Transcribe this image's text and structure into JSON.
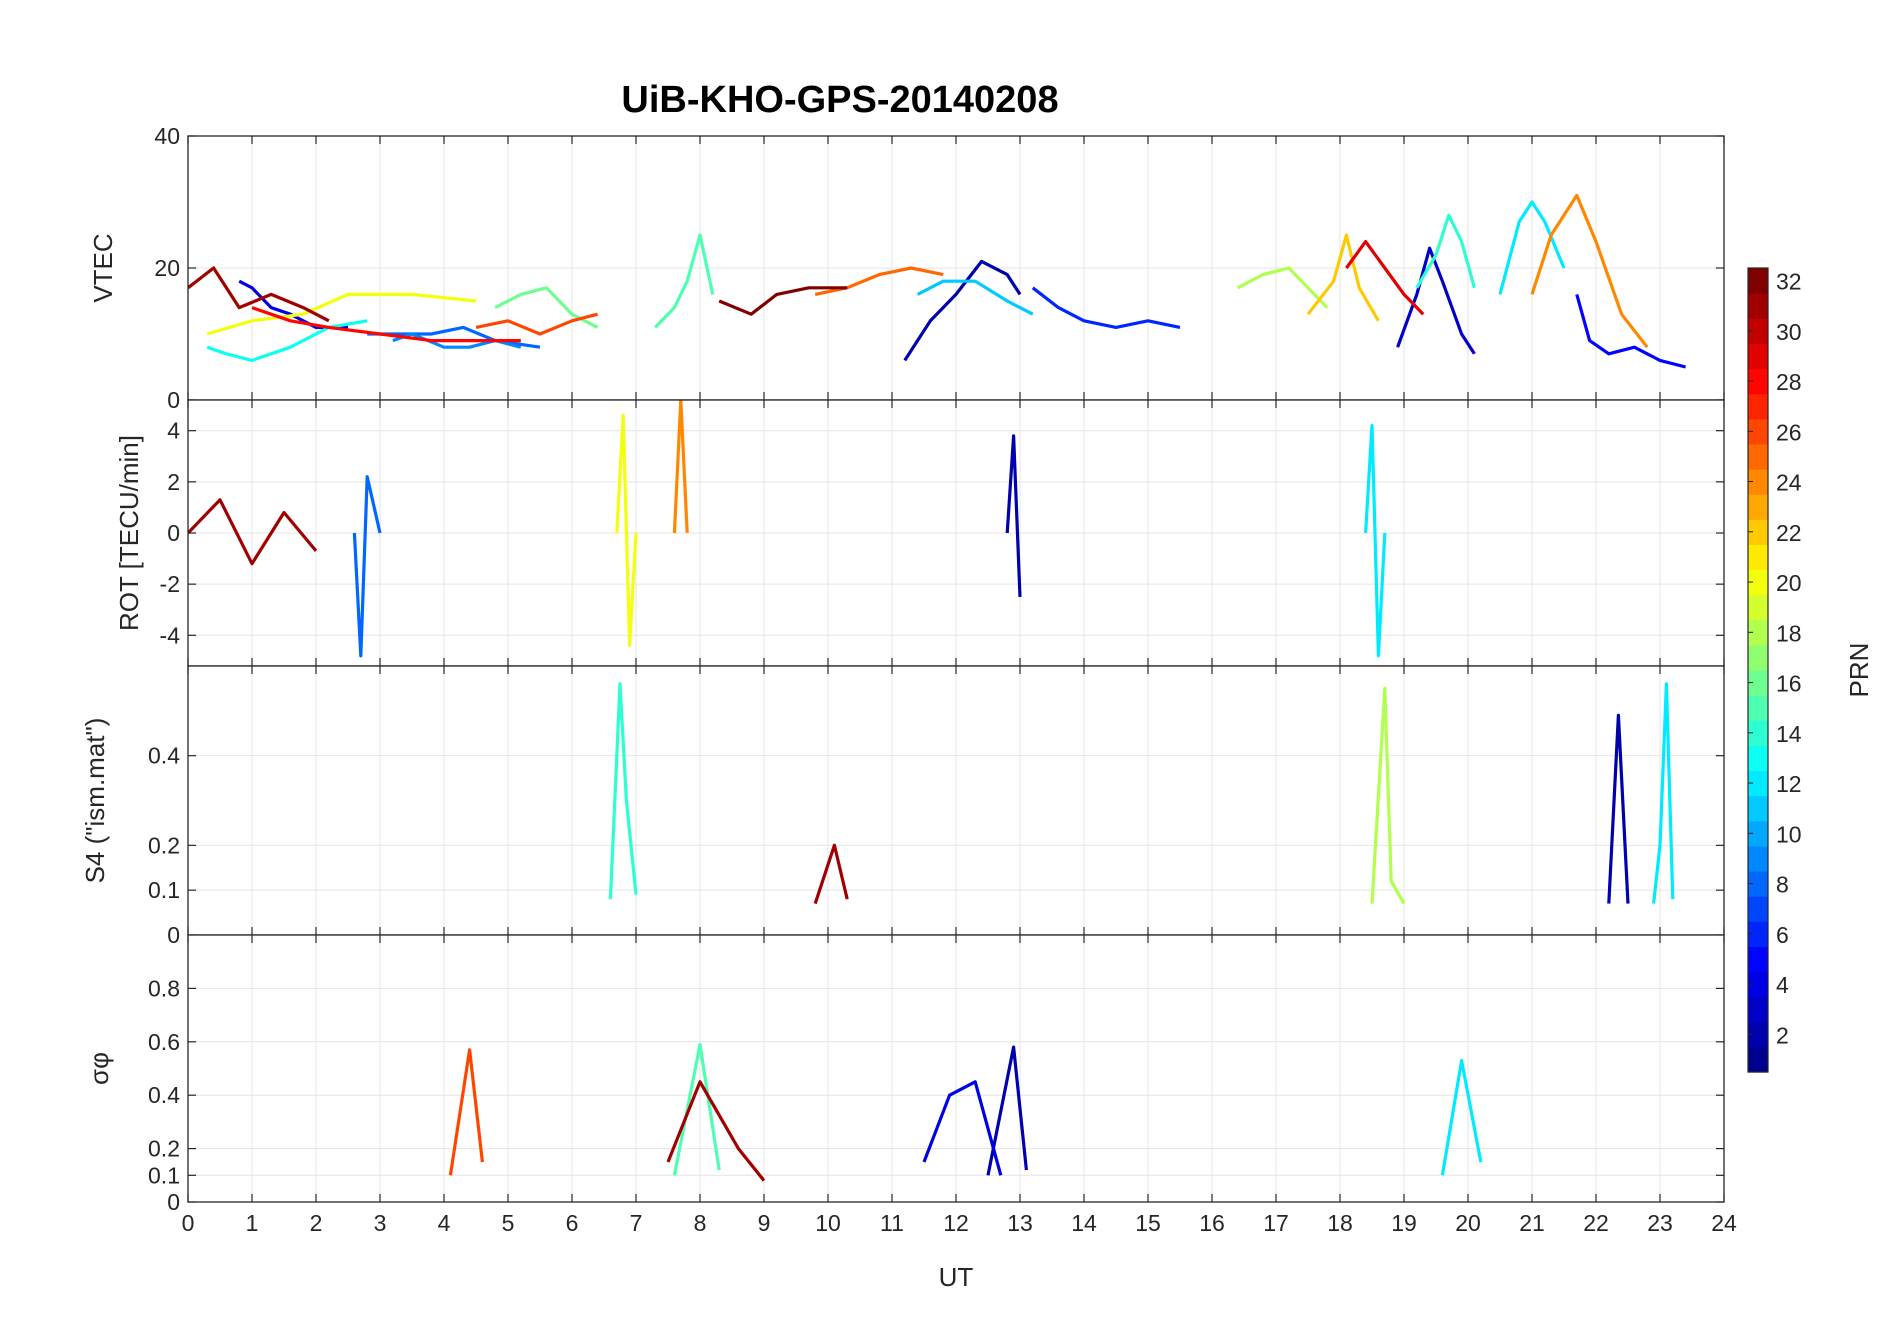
{
  "chart_data": {
    "type": "line",
    "title": "UiB-KHO-GPS-20140208",
    "x": {
      "label": "UT",
      "range": [
        0,
        24
      ],
      "ticks": [
        0,
        1,
        2,
        3,
        4,
        5,
        6,
        7,
        8,
        9,
        10,
        11,
        12,
        13,
        14,
        15,
        16,
        17,
        18,
        19,
        20,
        21,
        22,
        23,
        24
      ]
    },
    "grid": true,
    "colorbar": {
      "label": "PRN",
      "range": [
        1,
        32
      ],
      "ticks": [
        2,
        4,
        6,
        8,
        10,
        12,
        14,
        16,
        18,
        20,
        22,
        24,
        26,
        28,
        30,
        32
      ],
      "colormap": [
        "#00008f",
        "#0000ff",
        "#0080ff",
        "#00ffff",
        "#80ff80",
        "#ffff00",
        "#ff8000",
        "#ff0000",
        "#800000"
      ]
    },
    "panels": [
      {
        "id": "vtec",
        "ylabel": "VTEC",
        "ylim": [
          0,
          40
        ],
        "yticks": [
          0,
          20,
          40
        ],
        "ytick_labels": [
          "0",
          "20",
          "40"
        ],
        "series": [
          {
            "prn": 2,
            "points": [
              [
                11.2,
                6
              ],
              [
                11.6,
                12
              ],
              [
                12,
                16
              ],
              [
                12.4,
                21
              ],
              [
                12.8,
                19
              ],
              [
                13,
                16
              ]
            ]
          },
          {
            "prn": 3,
            "points": [
              [
                18.9,
                8
              ],
              [
                19.2,
                16
              ],
              [
                19.4,
                23
              ],
              [
                19.6,
                18
              ],
              [
                19.9,
                10
              ],
              [
                20.1,
                7
              ]
            ]
          },
          {
            "prn": 4,
            "points": [
              [
                0.8,
                18
              ],
              [
                1,
                17
              ],
              [
                1.3,
                14
              ],
              [
                1.6,
                13
              ],
              [
                2,
                11
              ],
              [
                2.5,
                11
              ]
            ]
          },
          {
            "prn": 5,
            "points": [
              [
                21.7,
                16
              ],
              [
                21.9,
                9
              ],
              [
                22.2,
                7
              ],
              [
                22.6,
                8
              ],
              [
                23,
                6
              ],
              [
                23.4,
                5
              ]
            ]
          },
          {
            "prn": 6,
            "points": [
              [
                13.2,
                17
              ],
              [
                13.6,
                14
              ],
              [
                14,
                12
              ],
              [
                14.5,
                11
              ],
              [
                15,
                12
              ],
              [
                15.5,
                11
              ]
            ]
          },
          {
            "prn": 8,
            "points": [
              [
                2.8,
                10
              ],
              [
                3.2,
                10
              ],
              [
                3.8,
                10
              ],
              [
                4.3,
                11
              ],
              [
                4.8,
                9
              ],
              [
                5.5,
                8
              ]
            ]
          },
          {
            "prn": 9,
            "points": [
              [
                3.2,
                9
              ],
              [
                3.5,
                10
              ],
              [
                4,
                8
              ],
              [
                4.4,
                8
              ],
              [
                4.8,
                9
              ],
              [
                5.2,
                8
              ]
            ]
          },
          {
            "prn": 11,
            "points": [
              [
                11.4,
                16
              ],
              [
                11.8,
                18
              ],
              [
                12.3,
                18
              ],
              [
                12.8,
                15
              ],
              [
                13.2,
                13
              ]
            ]
          },
          {
            "prn": 12,
            "points": [
              [
                20.5,
                16
              ],
              [
                20.8,
                27
              ],
              [
                21,
                30
              ],
              [
                21.2,
                27
              ],
              [
                21.5,
                20
              ]
            ]
          },
          {
            "prn": 13,
            "points": [
              [
                0.3,
                8
              ],
              [
                0.6,
                7
              ],
              [
                1,
                6
              ],
              [
                1.6,
                8
              ],
              [
                2.2,
                11
              ],
              [
                2.8,
                12
              ]
            ]
          },
          {
            "prn": 14,
            "points": [
              [
                19.2,
                17
              ],
              [
                19.5,
                22
              ],
              [
                19.7,
                28
              ],
              [
                19.9,
                24
              ],
              [
                20.1,
                17
              ]
            ]
          },
          {
            "prn": 15,
            "points": [
              [
                7.3,
                11
              ],
              [
                7.6,
                14
              ],
              [
                7.8,
                18
              ],
              [
                8,
                25
              ],
              [
                8.2,
                16
              ]
            ]
          },
          {
            "prn": 16,
            "points": [
              [
                4.8,
                14
              ],
              [
                5.2,
                16
              ],
              [
                5.6,
                17
              ],
              [
                6,
                13
              ],
              [
                6.4,
                11
              ]
            ]
          },
          {
            "prn": 18,
            "points": [
              [
                16.4,
                17
              ],
              [
                16.8,
                19
              ],
              [
                17.2,
                20
              ],
              [
                17.6,
                16
              ],
              [
                17.8,
                14
              ]
            ]
          },
          {
            "prn": 20,
            "points": [
              [
                0.3,
                10
              ],
              [
                1,
                12
              ],
              [
                1.8,
                13
              ],
              [
                2.5,
                16
              ],
              [
                3.5,
                16
              ],
              [
                4.5,
                15
              ]
            ]
          },
          {
            "prn": 22,
            "points": [
              [
                17.5,
                13
              ],
              [
                17.9,
                18
              ],
              [
                18.1,
                25
              ],
              [
                18.3,
                17
              ],
              [
                18.6,
                12
              ]
            ]
          },
          {
            "prn": 24,
            "points": [
              [
                21,
                16
              ],
              [
                21.3,
                25
              ],
              [
                21.7,
                31
              ],
              [
                22,
                24
              ],
              [
                22.4,
                13
              ],
              [
                22.8,
                8
              ]
            ]
          },
          {
            "prn": 25,
            "points": [
              [
                9.8,
                16
              ],
              [
                10.3,
                17
              ],
              [
                10.8,
                19
              ],
              [
                11.3,
                20
              ],
              [
                11.8,
                19
              ]
            ]
          },
          {
            "prn": 26,
            "points": [
              [
                4.5,
                11
              ],
              [
                5,
                12
              ],
              [
                5.5,
                10
              ],
              [
                6,
                12
              ],
              [
                6.4,
                13
              ]
            ]
          },
          {
            "prn": 28,
            "points": [
              [
                1,
                14
              ],
              [
                1.6,
                12
              ],
              [
                2.2,
                11
              ],
              [
                3,
                10
              ],
              [
                3.8,
                9
              ],
              [
                4.5,
                9
              ],
              [
                5.2,
                9
              ]
            ]
          },
          {
            "prn": 29,
            "points": [
              [
                18.1,
                20
              ],
              [
                18.4,
                24
              ],
              [
                18.7,
                20
              ],
              [
                19,
                16
              ],
              [
                19.3,
                13
              ]
            ]
          },
          {
            "prn": 31,
            "points": [
              [
                0,
                17
              ],
              [
                0.4,
                20
              ],
              [
                0.8,
                14
              ],
              [
                1.3,
                16
              ],
              [
                1.8,
                14
              ],
              [
                2.2,
                12
              ]
            ]
          },
          {
            "prn": 32,
            "points": [
              [
                8.3,
                15
              ],
              [
                8.8,
                13
              ],
              [
                9.2,
                16
              ],
              [
                9.7,
                17
              ],
              [
                10.3,
                17
              ]
            ]
          }
        ]
      },
      {
        "id": "rot",
        "ylabel": "ROT [TECU/min]",
        "ylim": [
          -5.2,
          5.2
        ],
        "yticks": [
          -4,
          -2,
          0,
          2,
          4
        ],
        "ytick_labels": [
          "-4",
          "-2",
          "0",
          "2",
          "4"
        ],
        "series": [
          {
            "prn": 2,
            "points": [
              [
                12.8,
                0
              ],
              [
                12.9,
                3.8
              ],
              [
                13.0,
                -2.5
              ]
            ]
          },
          {
            "prn": 8,
            "points": [
              [
                2.6,
                0
              ],
              [
                2.7,
                -4.8
              ],
              [
                2.8,
                2.2
              ],
              [
                3.0,
                0
              ]
            ]
          },
          {
            "prn": 12,
            "points": [
              [
                18.4,
                0
              ],
              [
                18.5,
                4.2
              ],
              [
                18.6,
                -4.8
              ],
              [
                18.7,
                0
              ]
            ]
          },
          {
            "prn": 20,
            "points": [
              [
                6.7,
                0
              ],
              [
                6.8,
                4.6
              ],
              [
                6.9,
                -4.4
              ],
              [
                7.0,
                0
              ]
            ]
          },
          {
            "prn": 24,
            "points": [
              [
                7.6,
                0
              ],
              [
                7.7,
                5.2
              ],
              [
                7.8,
                0
              ]
            ]
          },
          {
            "prn": 31,
            "points": [
              [
                0,
                0
              ],
              [
                0.5,
                1.3
              ],
              [
                1,
                -1.2
              ],
              [
                1.5,
                0.8
              ],
              [
                2,
                -0.7
              ]
            ]
          }
        ]
      },
      {
        "id": "s4",
        "ylabel": "S4 (\"ism.mat\")",
        "ylim": [
          0,
          0.6
        ],
        "yticks": [
          0,
          0.1,
          0.2,
          0.4
        ],
        "ytick_labels": [
          "0",
          "0.1",
          "0.2",
          "0.4"
        ],
        "series": [
          {
            "prn": 2,
            "points": [
              [
                22.2,
                0.07
              ],
              [
                22.35,
                0.49
              ],
              [
                22.4,
                0.35
              ],
              [
                22.5,
                0.07
              ]
            ]
          },
          {
            "prn": 12,
            "points": [
              [
                22.9,
                0.07
              ],
              [
                23.0,
                0.2
              ],
              [
                23.1,
                0.56
              ],
              [
                23.2,
                0.08
              ]
            ]
          },
          {
            "prn": 14,
            "points": [
              [
                6.6,
                0.08
              ],
              [
                6.75,
                0.56
              ],
              [
                6.85,
                0.3
              ],
              [
                7.0,
                0.09
              ]
            ]
          },
          {
            "prn": 18,
            "points": [
              [
                18.5,
                0.07
              ],
              [
                18.7,
                0.55
              ],
              [
                18.8,
                0.12
              ],
              [
                19,
                0.07
              ]
            ]
          },
          {
            "prn": 31,
            "points": [
              [
                9.8,
                0.07
              ],
              [
                10.1,
                0.2
              ],
              [
                10.3,
                0.08
              ]
            ]
          }
        ]
      },
      {
        "id": "sigma_phi",
        "ylabel": "σφ",
        "ylim": [
          0,
          1
        ],
        "yticks": [
          0,
          0.1,
          0.2,
          0.4,
          0.6,
          0.8
        ],
        "ytick_labels": [
          "0",
          "0.1",
          "0.2",
          "0.4",
          "0.6",
          "0.8"
        ],
        "series": [
          {
            "prn": 2,
            "points": [
              [
                12.5,
                0.1
              ],
              [
                12.9,
                0.58
              ],
              [
                13.1,
                0.12
              ]
            ]
          },
          {
            "prn": 4,
            "points": [
              [
                11.5,
                0.15
              ],
              [
                11.9,
                0.4
              ],
              [
                12.3,
                0.45
              ],
              [
                12.7,
                0.1
              ]
            ]
          },
          {
            "prn": 12,
            "points": [
              [
                19.6,
                0.1
              ],
              [
                19.9,
                0.53
              ],
              [
                20.2,
                0.15
              ]
            ]
          },
          {
            "prn": 15,
            "points": [
              [
                7.6,
                0.1
              ],
              [
                8.0,
                0.59
              ],
              [
                8.3,
                0.12
              ]
            ]
          },
          {
            "prn": 26,
            "points": [
              [
                4.1,
                0.1
              ],
              [
                4.4,
                0.57
              ],
              [
                4.6,
                0.15
              ]
            ]
          },
          {
            "prn": 31,
            "points": [
              [
                7.5,
                0.15
              ],
              [
                8.0,
                0.45
              ],
              [
                8.6,
                0.2
              ],
              [
                9.0,
                0.08
              ]
            ]
          }
        ]
      }
    ]
  }
}
